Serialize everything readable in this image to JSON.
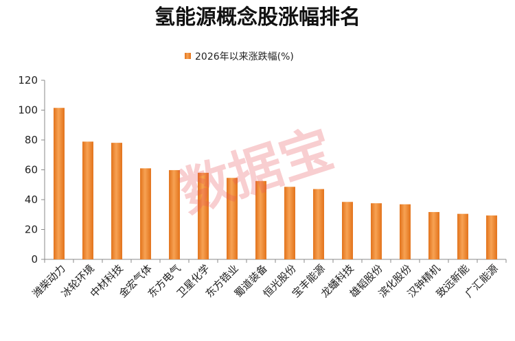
{
  "watermark": "数据宝",
  "chart_data": {
    "type": "bar",
    "title": "氢能源概念股涨幅排名",
    "legend": {
      "position": "top",
      "label": "2026年以来涨跌幅(%)"
    },
    "categories": [
      "潍柴动力",
      "冰轮环境",
      "中材科技",
      "金宏气体",
      "东方电气",
      "卫星化学",
      "东方锆业",
      "蜀道装备",
      "恒光股份",
      "宝丰能源",
      "龙蟠科技",
      "雄韬股份",
      "滨化股份",
      "汉钟精机",
      "致远新能",
      "广汇能源"
    ],
    "series": [
      {
        "name": "2026年以来涨跌幅(%)",
        "values": [
          101.5,
          78.9,
          78.1,
          61.0,
          59.8,
          58.0,
          54.6,
          52.5,
          48.6,
          47.1,
          38.5,
          37.6,
          36.9,
          31.7,
          30.5,
          29.4
        ]
      }
    ],
    "ylim": [
      0,
      120
    ],
    "yticks": [
      0,
      20,
      40,
      60,
      80,
      100,
      120
    ],
    "grid": false,
    "color": "#f08a2a"
  }
}
